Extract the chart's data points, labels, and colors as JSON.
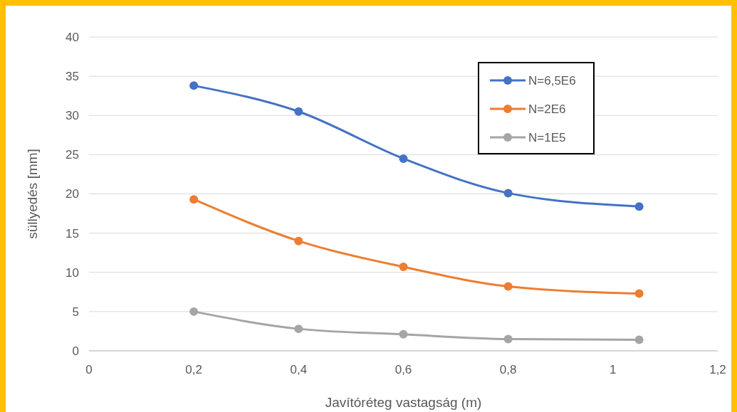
{
  "chart_data": {
    "type": "line",
    "xlabel": "Javítóréteg vastagság (m)",
    "ylabel": "süllyedés [mm]",
    "xlim": [
      0,
      1.2
    ],
    "xticks": [
      0,
      {
        "value": 0.2,
        "label": "0,2"
      },
      {
        "value": 0.4,
        "label": "0,4"
      },
      {
        "value": 0.6,
        "label": "0,6"
      },
      {
        "value": 0.8,
        "label": "0,8"
      },
      1,
      {
        "value": 1.2,
        "label": "1,2"
      }
    ],
    "ylim": [
      0,
      40
    ],
    "yticks": [
      0,
      5,
      10,
      15,
      20,
      25,
      30,
      35,
      40
    ],
    "grid": "y",
    "legend": "top right",
    "marker": "circle",
    "line_style": "solid",
    "x": [
      0.2,
      0.4,
      0.6,
      0.8,
      1.05
    ],
    "series": [
      {
        "name": "N=6,5E6",
        "color": "#4472c4",
        "values": [
          33.8,
          30.5,
          24.5,
          20.1,
          18.4
        ]
      },
      {
        "name": "N=2E6",
        "color": "#ed7d31",
        "values": [
          19.3,
          14.0,
          10.7,
          8.2,
          7.3
        ]
      },
      {
        "name": "N=1E5",
        "color": "#a5a5a5",
        "values": [
          5.0,
          2.8,
          2.1,
          1.5,
          1.4
        ]
      }
    ]
  }
}
